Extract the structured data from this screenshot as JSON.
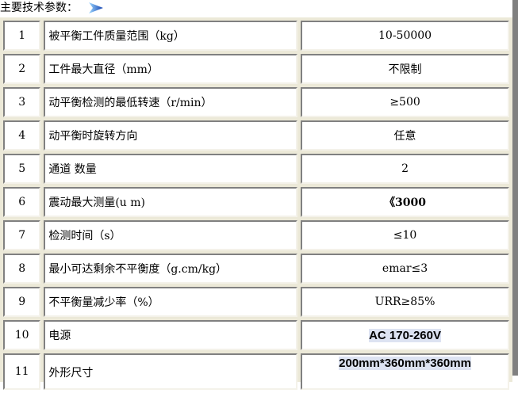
{
  "heading": "主要技术参数：",
  "rows": [
    {
      "no": "1",
      "param": "被平衡工件质量范围（kg）",
      "value": "10-50000"
    },
    {
      "no": "2",
      "param": "工件最大直径（mm）",
      "value": "不限制"
    },
    {
      "no": "3",
      "param": "动平衡检测的最低转速（r/min）",
      "value": "≥500"
    },
    {
      "no": "4",
      "param": "动平衡时旋转方向",
      "value": "任意"
    },
    {
      "no": "5",
      "param": "通道 数量",
      "value": "2"
    },
    {
      "no": "6",
      "param": "震动最大测量(u m)",
      "value": "《3000"
    },
    {
      "no": "7",
      "param": "检测时间（s）",
      "value": "≤10"
    },
    {
      "no": "8",
      "param": "最小可达剩余不平衡度（g.cm/kg）",
      "value": "emar≤3"
    },
    {
      "no": "9",
      "param": "不平衡量减少率（%）",
      "value": "URR≥85%"
    },
    {
      "no": "10",
      "param": "电源",
      "value": "AC 170-260V"
    },
    {
      "no": "11",
      "param": "外形尺寸",
      "value": "200mm*360mm*360mm"
    }
  ]
}
